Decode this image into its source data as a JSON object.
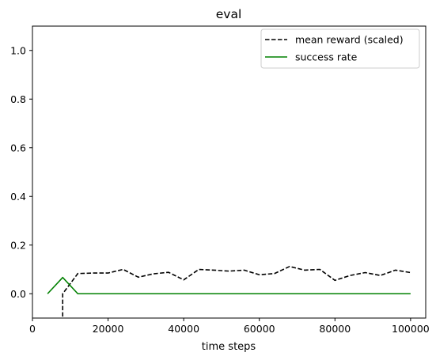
{
  "chart_data": {
    "type": "line",
    "title": "eval",
    "xlabel": "time steps",
    "ylabel": "",
    "xlim": [
      0,
      104000
    ],
    "ylim": [
      -0.1,
      1.1
    ],
    "xticks": [
      0,
      20000,
      40000,
      60000,
      80000,
      100000
    ],
    "xtick_labels": [
      "0",
      "20000",
      "40000",
      "60000",
      "80000",
      "100000"
    ],
    "yticks": [
      0.0,
      0.2,
      0.4,
      0.6,
      0.8,
      1.0
    ],
    "ytick_labels": [
      "0.0",
      "0.2",
      "0.4",
      "0.6",
      "0.8",
      "1.0"
    ],
    "grid": false,
    "legend_position": "top-right",
    "series": [
      {
        "name": "mean reward (scaled)",
        "color": "#000000",
        "style": "dashed",
        "x": [
          8000,
          8000,
          12000,
          16000,
          20000,
          24000,
          28000,
          32000,
          36000,
          40000,
          44000,
          48000,
          52000,
          56000,
          60000,
          64000,
          68000,
          72000,
          76000,
          80000,
          84000,
          88000,
          92000,
          96000,
          100000
        ],
        "y": [
          -0.12,
          0.0,
          0.083,
          0.085,
          0.085,
          0.1,
          0.068,
          0.082,
          0.088,
          0.057,
          0.1,
          0.097,
          0.093,
          0.097,
          0.078,
          0.083,
          0.112,
          0.097,
          0.1,
          0.055,
          0.075,
          0.087,
          0.075,
          0.097,
          0.087
        ]
      },
      {
        "name": "success rate",
        "color": "#008000",
        "style": "solid",
        "x": [
          4000,
          8000,
          12000,
          16000,
          20000,
          24000,
          28000,
          32000,
          36000,
          40000,
          44000,
          48000,
          52000,
          56000,
          60000,
          64000,
          68000,
          72000,
          76000,
          80000,
          84000,
          88000,
          92000,
          96000,
          100000
        ],
        "y": [
          0.0,
          0.067,
          0.0,
          0.0,
          0.0,
          0.0,
          0.0,
          0.0,
          0.0,
          0.0,
          0.0,
          0.0,
          0.0,
          0.0,
          0.0,
          0.0,
          0.0,
          0.0,
          0.0,
          0.0,
          0.0,
          0.0,
          0.0,
          0.0,
          0.0
        ]
      }
    ]
  }
}
